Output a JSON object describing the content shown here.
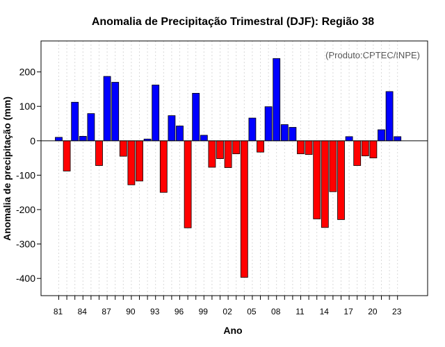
{
  "chart_data": {
    "type": "bar",
    "title": "Anomalia de Precipitação Trimestral (DJF): Região 38",
    "xlabel": "Ano",
    "ylabel": "Anomalia de precipitação (mm)",
    "credit": "(Produto:CPTEC/INPE)",
    "ylim": [
      -450,
      290
    ],
    "yticks": [
      -400,
      -300,
      -200,
      -100,
      0,
      100,
      200
    ],
    "years": [
      1981,
      1982,
      1983,
      1984,
      1985,
      1986,
      1987,
      1988,
      1989,
      1990,
      1991,
      1992,
      1993,
      1994,
      1995,
      1996,
      1997,
      1998,
      1999,
      2000,
      2001,
      2002,
      2003,
      2004,
      2005,
      2006,
      2007,
      2008,
      2009,
      2010,
      2011,
      2012,
      2013,
      2014,
      2015,
      2016,
      2017,
      2018,
      2019,
      2020,
      2021,
      2022,
      2023
    ],
    "values": [
      10,
      -88,
      112,
      13,
      79,
      -72,
      187,
      170,
      -45,
      -128,
      -117,
      5,
      162,
      -150,
      73,
      43,
      -253,
      138,
      16,
      -77,
      -52,
      -78,
      -38,
      -397,
      66,
      -33,
      99,
      239,
      47,
      39,
      -38,
      -40,
      -227,
      -252,
      -148,
      -229,
      12,
      -72,
      -44,
      -50,
      32,
      143,
      12
    ],
    "xtick_labels": [
      "81",
      "84",
      "87",
      "90",
      "93",
      "96",
      "99",
      "02",
      "05",
      "08",
      "11",
      "14",
      "17",
      "20",
      "23"
    ],
    "colors": {
      "positive": "#0000ff",
      "negative": "#ff0000",
      "grid": "#d9d9d9",
      "zero_line": "#000000"
    }
  }
}
